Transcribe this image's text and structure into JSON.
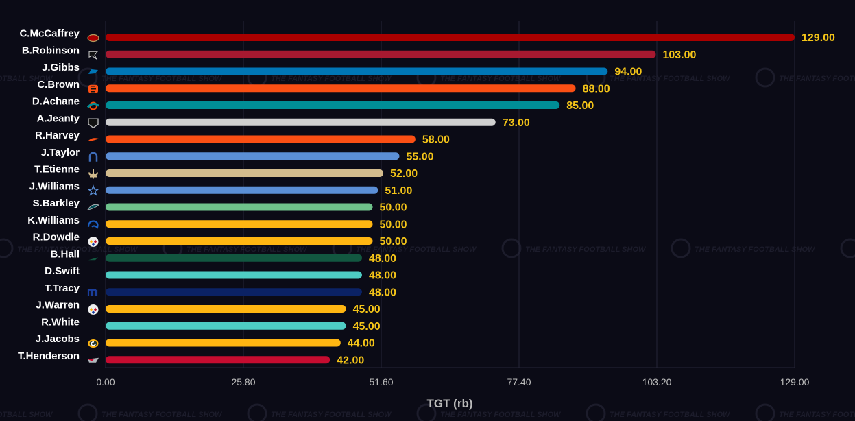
{
  "chart_data": {
    "type": "bar",
    "orientation": "horizontal",
    "xlabel": "TGT (rb)",
    "xlim": [
      0,
      129
    ],
    "ticks": [
      "0.00",
      "25.80",
      "51.60",
      "77.40",
      "103.20",
      "129.00"
    ],
    "grid": true,
    "watermark_text": "THE FANTASY FOOTBALL SHOW",
    "bars": [
      {
        "player": "C.McCaffrey",
        "team_icon": "49ers-logo-icon",
        "value": 129.0,
        "label": "129.00",
        "color": "#aa0000"
      },
      {
        "player": "B.Robinson",
        "team_icon": "falcons-logo-icon",
        "value": 103.0,
        "label": "103.00",
        "color": "#a71930"
      },
      {
        "player": "J.Gibbs",
        "team_icon": "lions-logo-icon",
        "value": 94.0,
        "label": "94.00",
        "color": "#0076b6"
      },
      {
        "player": "C.Brown",
        "team_icon": "bengals-logo-icon",
        "value": 88.0,
        "label": "88.00",
        "color": "#fb4f14"
      },
      {
        "player": "D.Achane",
        "team_icon": "dolphins-logo-icon",
        "value": 85.0,
        "label": "85.00",
        "color": "#008e97"
      },
      {
        "player": "A.Jeanty",
        "team_icon": "raiders-logo-icon",
        "value": 73.0,
        "label": "73.00",
        "color": "#d0d0d0"
      },
      {
        "player": "R.Harvey",
        "team_icon": "broncos-logo-icon",
        "value": 58.0,
        "label": "58.00",
        "color": "#fb4f14"
      },
      {
        "player": "J.Taylor",
        "team_icon": "colts-logo-icon",
        "value": 55.0,
        "label": "55.00",
        "color": "#5b8fd6"
      },
      {
        "player": "T.Etienne",
        "team_icon": "saints-logo-icon",
        "value": 52.0,
        "label": "52.00",
        "color": "#d3bc8d"
      },
      {
        "player": "J.Williams",
        "team_icon": "cowboys-logo-icon",
        "value": 51.0,
        "label": "51.00",
        "color": "#5b8fd6"
      },
      {
        "player": "S.Barkley",
        "team_icon": "eagles-logo-icon",
        "value": 50.0,
        "label": "50.00",
        "color": "#6fc28b"
      },
      {
        "player": "K.Williams",
        "team_icon": "rams-logo-icon",
        "value": 50.0,
        "label": "50.00",
        "color": "#ffb612"
      },
      {
        "player": "R.Dowdle",
        "team_icon": "steelers-logo-icon",
        "value": 50.0,
        "label": "50.00",
        "color": "#ffb612"
      },
      {
        "player": "B.Hall",
        "team_icon": "jets-logo-icon",
        "value": 48.0,
        "label": "48.00",
        "color": "#125740"
      },
      {
        "player": "D.Swift",
        "team_icon": "bears-logo-icon",
        "value": 48.0,
        "label": "48.00",
        "color": "#4ecdc4"
      },
      {
        "player": "T.Tracy",
        "team_icon": "giants-logo-icon",
        "value": 48.0,
        "label": "48.00",
        "color": "#0b2265"
      },
      {
        "player": "J.Warren",
        "team_icon": "steelers-logo-icon",
        "value": 45.0,
        "label": "45.00",
        "color": "#ffb612"
      },
      {
        "player": "R.White",
        "team_icon": "buccaneers-logo-icon",
        "value": 45.0,
        "label": "45.00",
        "color": "#4ecdc4"
      },
      {
        "player": "J.Jacobs",
        "team_icon": "packers-logo-icon",
        "value": 44.0,
        "label": "44.00",
        "color": "#ffb612"
      },
      {
        "player": "T.Henderson",
        "team_icon": "patriots-logo-icon",
        "value": 42.0,
        "label": "42.00",
        "color": "#c60c30"
      }
    ]
  }
}
